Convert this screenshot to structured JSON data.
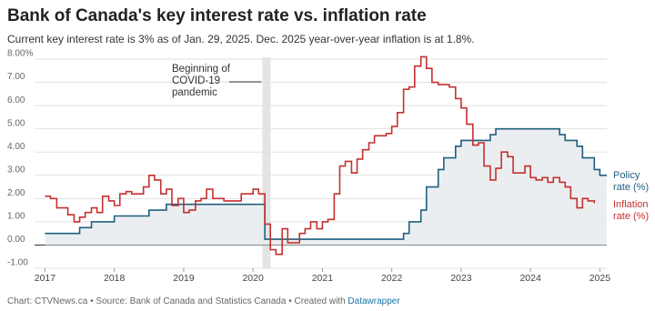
{
  "chart_data": {
    "type": "step-line",
    "title": "Bank of Canada's key interest rate vs. inflation rate",
    "subtitle": "Current key interest rate is 3% as of Jan. 29, 2025. Dec. 2025 year-over-year inflation is at 1.8%.",
    "x": [
      2017,
      2017.08,
      2017.17,
      2017.25,
      2017.33,
      2017.42,
      2017.5,
      2017.58,
      2017.67,
      2017.75,
      2017.83,
      2017.92,
      2018,
      2018.08,
      2018.17,
      2018.25,
      2018.33,
      2018.42,
      2018.5,
      2018.58,
      2018.67,
      2018.75,
      2018.83,
      2018.92,
      2019,
      2019.08,
      2019.17,
      2019.25,
      2019.33,
      2019.42,
      2019.5,
      2019.58,
      2019.67,
      2019.75,
      2019.83,
      2019.92,
      2020,
      2020.08,
      2020.17,
      2020.25,
      2020.33,
      2020.42,
      2020.5,
      2020.58,
      2020.67,
      2020.75,
      2020.83,
      2020.92,
      2021,
      2021.08,
      2021.17,
      2021.25,
      2021.33,
      2021.42,
      2021.5,
      2021.58,
      2021.67,
      2021.75,
      2021.83,
      2021.92,
      2022,
      2022.08,
      2022.17,
      2022.25,
      2022.33,
      2022.42,
      2022.5,
      2022.58,
      2022.67,
      2022.75,
      2022.83,
      2022.92,
      2023,
      2023.08,
      2023.17,
      2023.25,
      2023.33,
      2023.42,
      2023.5,
      2023.58,
      2023.67,
      2023.75,
      2023.83,
      2023.92,
      2024,
      2024.08,
      2024.17,
      2024.25,
      2024.33,
      2024.42,
      2024.5,
      2024.58,
      2024.67,
      2024.75,
      2024.83,
      2024.92,
      2025
    ],
    "series": [
      {
        "name": "Policy rate (%)",
        "color": "#1f5f80",
        "area_color": "#e9ecee",
        "values": [
          0.5,
          0.5,
          0.5,
          0.5,
          0.5,
          0.5,
          0.75,
          0.75,
          1,
          1,
          1,
          1,
          1.25,
          1.25,
          1.25,
          1.25,
          1.25,
          1.25,
          1.5,
          1.5,
          1.5,
          1.75,
          1.75,
          1.75,
          1.75,
          1.75,
          1.75,
          1.75,
          1.75,
          1.75,
          1.75,
          1.75,
          1.75,
          1.75,
          1.75,
          1.75,
          1.75,
          1.75,
          0.25,
          0.25,
          0.25,
          0.25,
          0.25,
          0.25,
          0.25,
          0.25,
          0.25,
          0.25,
          0.25,
          0.25,
          0.25,
          0.25,
          0.25,
          0.25,
          0.25,
          0.25,
          0.25,
          0.25,
          0.25,
          0.25,
          0.25,
          0.25,
          0.5,
          1,
          1,
          1.5,
          2.5,
          2.5,
          3.25,
          3.75,
          3.75,
          4.25,
          4.5,
          4.5,
          4.5,
          4.5,
          4.5,
          4.75,
          5,
          5,
          5,
          5,
          5,
          5,
          5,
          5,
          5,
          5,
          5,
          4.75,
          4.5,
          4.5,
          4.25,
          3.75,
          3.75,
          3.25,
          3
        ]
      },
      {
        "name": "Inflation rate (%)",
        "color": "#c53030",
        "values": [
          2.1,
          2.0,
          1.6,
          1.6,
          1.3,
          1.0,
          1.2,
          1.4,
          1.6,
          1.4,
          2.1,
          1.9,
          1.7,
          2.2,
          2.3,
          2.2,
          2.2,
          2.5,
          3.0,
          2.8,
          2.2,
          2.4,
          1.7,
          2.0,
          1.4,
          1.5,
          1.9,
          2.0,
          2.4,
          2.0,
          2.0,
          1.9,
          1.9,
          1.9,
          2.2,
          2.2,
          2.4,
          2.2,
          0.9,
          -0.2,
          -0.4,
          0.7,
          0.1,
          0.1,
          0.5,
          0.7,
          1.0,
          0.7,
          1.0,
          1.1,
          2.2,
          3.4,
          3.6,
          3.1,
          3.7,
          4.1,
          4.4,
          4.7,
          4.7,
          4.8,
          5.1,
          5.7,
          6.7,
          6.8,
          7.7,
          8.1,
          7.6,
          7.0,
          6.9,
          6.9,
          6.8,
          6.3,
          5.9,
          5.2,
          4.3,
          4.4,
          3.4,
          2.8,
          3.3,
          4.0,
          3.8,
          3.1,
          3.1,
          3.4,
          2.9,
          2.8,
          2.9,
          2.7,
          2.9,
          2.7,
          2.5,
          2.0,
          1.6,
          2.0,
          1.9,
          1.8,
          null
        ]
      }
    ],
    "xlim": [
      2016.85,
      2025.1
    ],
    "xticks": [
      2017,
      2018,
      2019,
      2020,
      2021,
      2022,
      2023,
      2024,
      2025
    ],
    "ylim": [
      -1,
      8
    ],
    "yticks": [
      {
        "value": -1,
        "label": "-1.00"
      },
      {
        "value": 0,
        "label": "0.00"
      },
      {
        "value": 1,
        "label": "1.00"
      },
      {
        "value": 2,
        "label": "2.00"
      },
      {
        "value": 3,
        "label": "3.00"
      },
      {
        "value": 4,
        "label": "4.00"
      },
      {
        "value": 5,
        "label": "5.00"
      },
      {
        "value": 6,
        "label": "6.00"
      },
      {
        "value": 7,
        "label": "7.00"
      },
      {
        "value": 8,
        "label": "8.00%"
      }
    ],
    "grid": true,
    "annotation": {
      "text": "Beginning of COVID-19 pandemic",
      "x": 2020.2
    },
    "source": "Chart: CTVNews.ca • Source: Bank of Canada and Statistics Canada • Created with",
    "credit": "Datawrapper"
  }
}
